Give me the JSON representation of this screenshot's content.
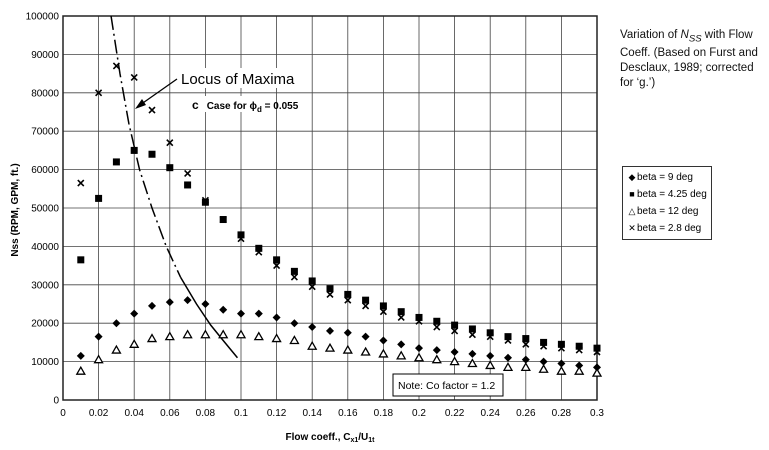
{
  "side_text": {
    "pre": "Variation of ",
    "n": "N",
    "sub": "SS",
    "post": " with Flow Coeff. (Based on Furst and Desclaux, 1989; corrected for ‘g.’)"
  },
  "chart_data": {
    "type": "scatter",
    "xlabel_main": "Flow coeff., C",
    "xlabel_sub1": "x1",
    "xlabel_slash": "/U",
    "xlabel_sub2": "1t",
    "ylabel": "Nss (RPM, GPM, ft.)",
    "xlim": [
      0,
      0.3
    ],
    "ylim": [
      0,
      100000
    ],
    "grid": true,
    "legend_position": "right",
    "x_ticks": [
      "0",
      "0.02",
      "0.04",
      "0.06",
      "0.08",
      "0.1",
      "0.12",
      "0.14",
      "0.16",
      "0.18",
      "0.2",
      "0.22",
      "0.24",
      "0.26",
      "0.28",
      "0.3"
    ],
    "y_ticks": [
      "0",
      "10000",
      "20000",
      "30000",
      "40000",
      "50000",
      "60000",
      "70000",
      "80000",
      "90000",
      "100000"
    ],
    "x": [
      0.01,
      0.02,
      0.03,
      0.04,
      0.05,
      0.06,
      0.07,
      0.08,
      0.09,
      0.1,
      0.11,
      0.12,
      0.13,
      0.14,
      0.15,
      0.16,
      0.17,
      0.18,
      0.19,
      0.2,
      0.21,
      0.22,
      0.23,
      0.24,
      0.25,
      0.26,
      0.27,
      0.28,
      0.29,
      0.3
    ],
    "series": [
      {
        "name": "beta = 9 deg",
        "marker": "diamond",
        "values": [
          11500,
          16500,
          20000,
          22500,
          24500,
          25500,
          26000,
          25000,
          23500,
          22500,
          22500,
          21500,
          20000,
          19000,
          18000,
          17500,
          16500,
          15500,
          14500,
          13500,
          13000,
          12500,
          12000,
          11500,
          11000,
          10500,
          10000,
          9500,
          9000,
          8500
        ]
      },
      {
        "name": "beta = 4.25 deg",
        "marker": "square",
        "values": [
          36500,
          52500,
          62000,
          65000,
          64000,
          60500,
          56000,
          51500,
          47000,
          43000,
          39500,
          36500,
          33500,
          31000,
          29000,
          27500,
          26000,
          24500,
          23000,
          21500,
          20500,
          19500,
          18500,
          17500,
          16500,
          16000,
          15000,
          14500,
          14000,
          13500
        ]
      },
      {
        "name": "beta = 12 deg",
        "marker": "triangle",
        "values": [
          7500,
          10500,
          13000,
          14500,
          16000,
          16500,
          17000,
          17000,
          17000,
          17000,
          16500,
          16000,
          15500,
          14000,
          13500,
          13000,
          12500,
          12000,
          11500,
          11000,
          10500,
          10000,
          9500,
          9000,
          8500,
          8500,
          8000,
          7500,
          7500,
          7000
        ]
      },
      {
        "name": "beta = 2.8 deg",
        "marker": "x",
        "values": [
          56500,
          80000,
          87000,
          84000,
          75500,
          67000,
          59000,
          52000,
          47000,
          42000,
          38500,
          35000,
          32000,
          29500,
          27500,
          26000,
          24500,
          23000,
          21500,
          20500,
          19000,
          18000,
          17000,
          16500,
          15500,
          14500,
          14000,
          13500,
          13000,
          12500
        ]
      }
    ],
    "curve": {
      "name": "Locus of Maxima",
      "points": [
        [
          0.027,
          100000
        ],
        [
          0.032,
          85000
        ],
        [
          0.037,
          72000
        ],
        [
          0.043,
          60000
        ],
        [
          0.05,
          50000
        ],
        [
          0.058,
          40000
        ],
        [
          0.066,
          32000
        ],
        [
          0.075,
          25000
        ],
        [
          0.083,
          19500
        ],
        [
          0.09,
          15500
        ],
        [
          0.098,
          11000
        ]
      ]
    },
    "annotations": {
      "case_marker": "c",
      "case_text": "Case for ",
      "case_phi": "ϕ",
      "case_sub": "d",
      "case_value": " = 0.055",
      "note": "Note: Co factor = 1.2"
    }
  }
}
